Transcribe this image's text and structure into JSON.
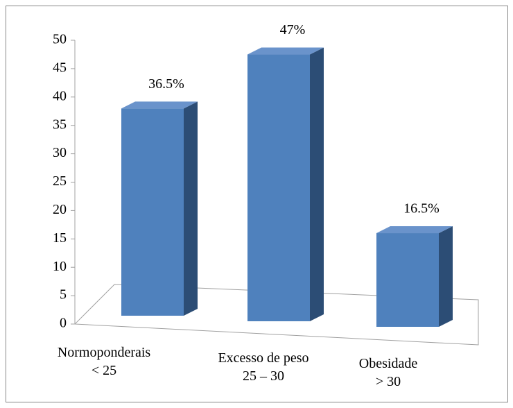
{
  "chart_data": {
    "type": "bar3d",
    "categories": [
      "Normoponderais\n< 25",
      "Excesso de peso\n25 – 30",
      "Obesidade\n> 30"
    ],
    "values": [
      36.5,
      47,
      16.5
    ],
    "value_labels": [
      "36.5%",
      "47%",
      "16.5%"
    ],
    "color": "#4f81bd",
    "ylim": [
      0,
      50
    ],
    "yticks": [
      0,
      5,
      10,
      15,
      20,
      25,
      30,
      35,
      40,
      45,
      50
    ],
    "grid": false
  }
}
